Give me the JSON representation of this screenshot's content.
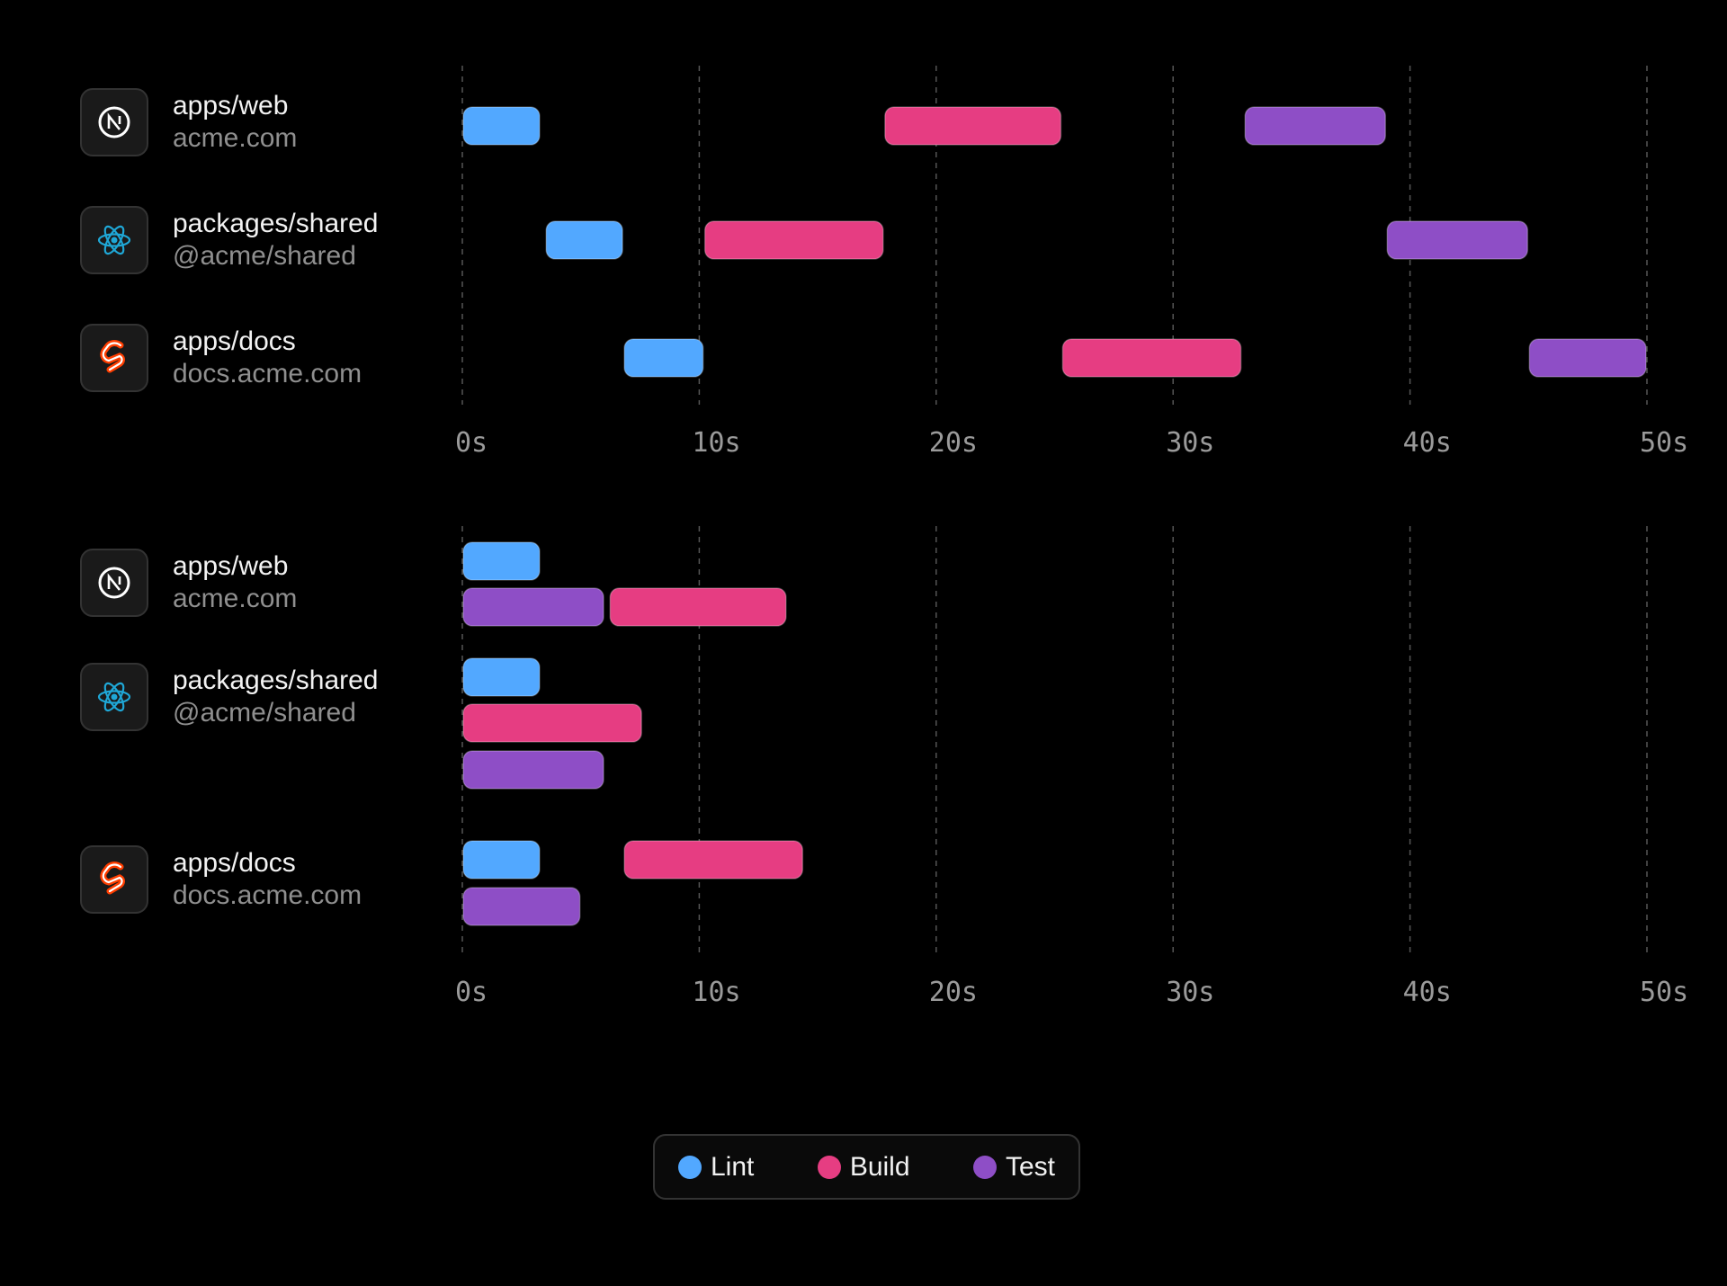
{
  "colors": {
    "Lint": "#52a8ff",
    "Build": "#e63d82",
    "Test": "#8e4ec6"
  },
  "packages": [
    {
      "name": "apps/web",
      "subtitle": "acme.com",
      "icon": "nextjs-icon"
    },
    {
      "name": "packages/shared",
      "subtitle": "@acme/shared",
      "icon": "react-icon"
    },
    {
      "name": "apps/docs",
      "subtitle": "docs.acme.com",
      "icon": "svelte-icon"
    }
  ],
  "legend": [
    {
      "label": "Lint",
      "color": "#52a8ff"
    },
    {
      "label": "Build",
      "color": "#e63d82"
    },
    {
      "label": "Test",
      "color": "#8e4ec6"
    }
  ],
  "chart_data": [
    {
      "type": "gantt",
      "xlim": [
        0,
        50
      ],
      "ticks": [
        "0s",
        "10s",
        "20s",
        "30s",
        "40s",
        "50s"
      ],
      "tick_values": [
        0,
        10,
        20,
        30,
        40,
        50
      ],
      "grid": "vertical dashed",
      "rows": [
        {
          "package": "apps/web",
          "tasks": [
            {
              "task": "Lint",
              "start": 0,
              "end": 3.3
            },
            {
              "task": "Build",
              "start": 17.8,
              "end": 25.3
            },
            {
              "task": "Test",
              "start": 33.0,
              "end": 39.0
            }
          ]
        },
        {
          "package": "packages/shared",
          "tasks": [
            {
              "task": "Lint",
              "start": 3.5,
              "end": 6.8
            },
            {
              "task": "Build",
              "start": 10.2,
              "end": 17.8
            },
            {
              "task": "Test",
              "start": 39.0,
              "end": 45.0
            }
          ]
        },
        {
          "package": "apps/docs",
          "tasks": [
            {
              "task": "Lint",
              "start": 6.8,
              "end": 10.2
            },
            {
              "task": "Build",
              "start": 25.3,
              "end": 32.9
            },
            {
              "task": "Test",
              "start": 45.0,
              "end": 50.0
            }
          ]
        }
      ]
    },
    {
      "type": "gantt",
      "xlim": [
        0,
        50
      ],
      "ticks": [
        "0s",
        "10s",
        "20s",
        "30s",
        "40s",
        "50s"
      ],
      "tick_values": [
        0,
        10,
        20,
        30,
        40,
        50
      ],
      "grid": "vertical dashed",
      "rows": [
        {
          "package": "apps/web",
          "tasks": [
            {
              "task": "Lint",
              "start": 0,
              "end": 3.3
            },
            {
              "task": "Test",
              "start": 0,
              "end": 6.0
            },
            {
              "task": "Build",
              "start": 6.2,
              "end": 13.7
            }
          ]
        },
        {
          "package": "packages/shared",
          "tasks": [
            {
              "task": "Lint",
              "start": 0,
              "end": 3.3
            },
            {
              "task": "Build",
              "start": 0,
              "end": 7.6
            },
            {
              "task": "Test",
              "start": 0,
              "end": 6.0
            }
          ]
        },
        {
          "package": "apps/docs",
          "tasks": [
            {
              "task": "Lint",
              "start": 0,
              "end": 3.3
            },
            {
              "task": "Build",
              "start": 6.8,
              "end": 14.4
            },
            {
              "task": "Test",
              "start": 0,
              "end": 5.0
            }
          ]
        }
      ]
    }
  ]
}
